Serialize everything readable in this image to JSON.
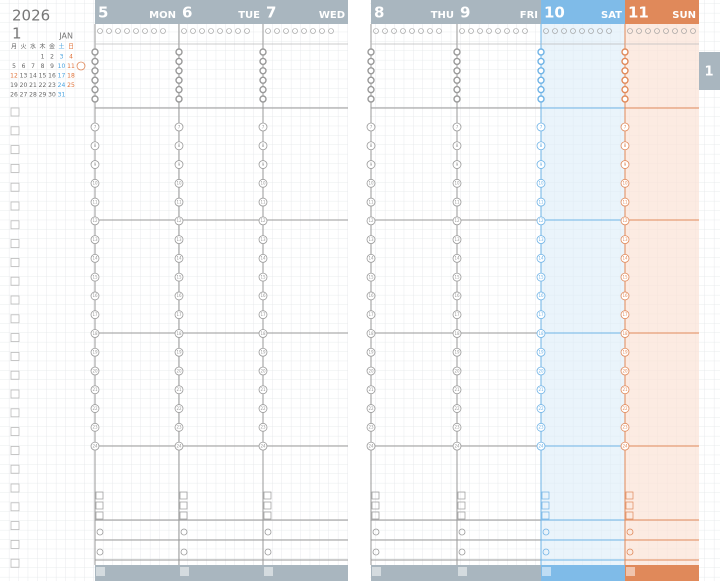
{
  "header": {
    "year": "2026",
    "month": "1",
    "month_name": "JAN",
    "tab": "1"
  },
  "mini_calendar": {
    "weekdays": [
      "月",
      "火",
      "水",
      "木",
      "金",
      "土",
      "日"
    ],
    "weeks": [
      [
        null,
        null,
        null,
        "1",
        "2",
        "3",
        "4"
      ],
      [
        "5",
        "6",
        "7",
        "8",
        "9",
        "10",
        "11"
      ],
      [
        "12",
        "13",
        "14",
        "15",
        "16",
        "17",
        "18"
      ],
      [
        "19",
        "20",
        "21",
        "22",
        "23",
        "24",
        "25"
      ],
      [
        "26",
        "27",
        "28",
        "29",
        "30",
        "31",
        null
      ]
    ]
  },
  "days": [
    {
      "date": "5",
      "weekday": "MON"
    },
    {
      "date": "6",
      "weekday": "TUE"
    },
    {
      "date": "7",
      "weekday": "WED"
    },
    {
      "date": "8",
      "weekday": "THU"
    },
    {
      "date": "9",
      "weekday": "FRI"
    },
    {
      "date": "10",
      "weekday": "SAT"
    },
    {
      "date": "11",
      "weekday": "SUN"
    }
  ],
  "hours": [
    "7",
    "8",
    "9",
    "10",
    "11",
    "12",
    "13",
    "14",
    "15",
    "16",
    "17",
    "18",
    "19",
    "20",
    "21",
    "22",
    "23",
    "24"
  ]
}
